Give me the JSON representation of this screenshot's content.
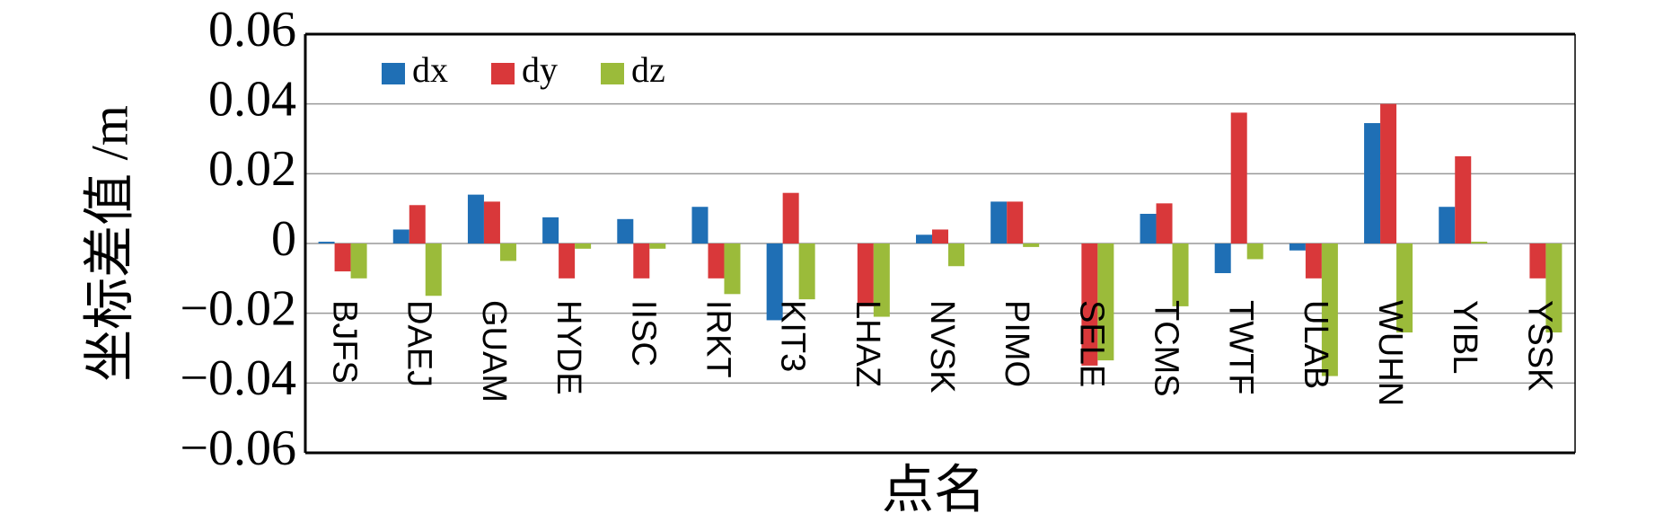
{
  "chart_data": {
    "type": "bar",
    "y_label": "坐标差值 /m",
    "x_label": "点名",
    "categories": [
      "BJFS",
      "DAEJ",
      "GUAM",
      "HYDE",
      "IISC",
      "IRKT",
      "KIT3",
      "LHAZ",
      "NVSK",
      "PIMO",
      "SELE",
      "TCMS",
      "TWTF",
      "ULAB",
      "WUHN",
      "YIBL",
      "YSSK"
    ],
    "series": [
      {
        "name": "dx",
        "color": "#1f6fb5",
        "values": [
          0.0005,
          0.004,
          0.014,
          0.0075,
          0.007,
          0.0105,
          -0.022,
          0,
          0.0025,
          0.012,
          0,
          0.0085,
          -0.0085,
          -0.002,
          0.0345,
          0.0105,
          0
        ]
      },
      {
        "name": "dy",
        "color": "#d9383a",
        "values": [
          -0.008,
          0.011,
          0.012,
          -0.01,
          -0.01,
          -0.01,
          0.0145,
          -0.018,
          0.004,
          0.012,
          -0.035,
          0.0115,
          0.0375,
          -0.01,
          0.04,
          0.025,
          -0.01
        ]
      },
      {
        "name": "dz",
        "color": "#9bbb3a",
        "values": [
          -0.01,
          -0.015,
          -0.005,
          -0.0015,
          -0.0015,
          -0.0145,
          -0.016,
          -0.021,
          -0.0065,
          -0.001,
          -0.0335,
          -0.018,
          -0.0045,
          -0.038,
          -0.0255,
          0.0005,
          -0.0255
        ]
      }
    ],
    "ylim": [
      -0.06,
      0.06
    ],
    "yticks": [
      0.06,
      0.04,
      0.02,
      0,
      {
        "value": -0.02,
        "label": "−0.02"
      },
      {
        "value": -0.04,
        "label": "−0.04"
      },
      {
        "value": -0.06,
        "label": "−0.06"
      }
    ],
    "grid": true
  }
}
